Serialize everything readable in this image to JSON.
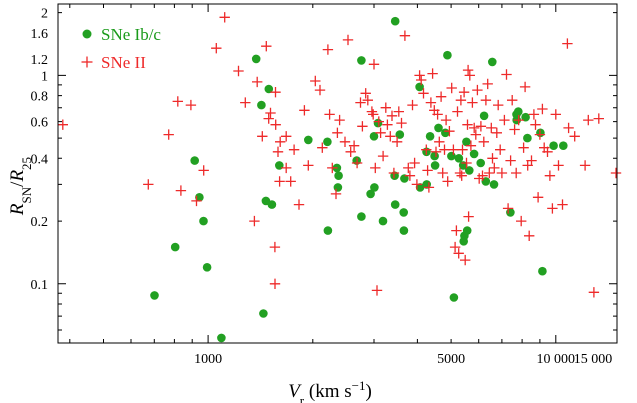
{
  "chart_data": {
    "type": "scatter",
    "xscale": "log",
    "yscale": "log",
    "xlim": [
      370,
      15000
    ],
    "ylim": [
      0.052,
      2.2
    ],
    "xlabel": "V_r (km s^-1)",
    "ylabel": "R_SN/R_25",
    "x_tick_labels": [
      {
        "value": 1000,
        "label": "1000"
      },
      {
        "value": 5000,
        "label": "5000"
      },
      {
        "value": 10000,
        "label": "10 000"
      },
      {
        "value": 15000,
        "label": "15 000"
      }
    ],
    "y_tick_labels": [
      {
        "value": 0.1,
        "label": "0.1"
      },
      {
        "value": 0.2,
        "label": "0.2"
      },
      {
        "value": 0.4,
        "label": "0.4"
      },
      {
        "value": 0.6,
        "label": "0.6"
      },
      {
        "value": 0.8,
        "label": "0.8"
      },
      {
        "value": 1.0,
        "label": "1"
      },
      {
        "value": 1.2,
        "label": "1.2"
      },
      {
        "value": 1.6,
        "label": "1.6"
      },
      {
        "value": 2.0,
        "label": "2"
      }
    ],
    "legend_position": "top-left",
    "series": [
      {
        "name": "SNe Ib/c",
        "marker": "circle",
        "color": "#22a022",
        "points": [
          [
            701,
            0.088
          ],
          [
            804,
            0.15
          ],
          [
            915,
            0.39
          ],
          [
            944,
            0.26
          ],
          [
            970,
            0.2
          ],
          [
            993,
            0.12
          ],
          [
            1092,
            0.055
          ],
          [
            1375,
            1.2
          ],
          [
            1423,
            0.72
          ],
          [
            1442,
            0.072
          ],
          [
            1466,
            0.25
          ],
          [
            1495,
            0.86
          ],
          [
            1526,
            0.24
          ],
          [
            1602,
            0.37
          ],
          [
            1941,
            0.49
          ],
          [
            2211,
            0.18
          ],
          [
            2203,
            0.48
          ],
          [
            2347,
            0.36
          ],
          [
            2373,
            0.33
          ],
          [
            2362,
            0.29
          ],
          [
            2676,
            0.39
          ],
          [
            2760,
            1.18
          ],
          [
            2760,
            0.21
          ],
          [
            2933,
            0.27
          ],
          [
            3009,
            0.29
          ],
          [
            3000,
            0.51
          ],
          [
            3080,
            0.59
          ],
          [
            3185,
            0.2
          ],
          [
            3453,
            0.24
          ],
          [
            3439,
            0.33
          ],
          [
            3453,
            1.82
          ],
          [
            3558,
            0.52
          ],
          [
            3658,
            0.18
          ],
          [
            3653,
            0.22
          ],
          [
            3669,
            0.32
          ],
          [
            4058,
            0.88
          ],
          [
            4071,
            0.29
          ],
          [
            4249,
            0.43
          ],
          [
            4253,
            0.3
          ],
          [
            4350,
            0.51
          ],
          [
            4482,
            0.41
          ],
          [
            4496,
            0.37
          ],
          [
            4599,
            0.56
          ],
          [
            4812,
            0.53
          ],
          [
            4877,
            1.25
          ],
          [
            5008,
            0.41
          ],
          [
            5092,
            0.086
          ],
          [
            5264,
            0.4
          ],
          [
            5418,
            0.37
          ],
          [
            5436,
            0.16
          ],
          [
            5458,
            0.17
          ],
          [
            5533,
            0.48
          ],
          [
            5560,
            0.18
          ],
          [
            5640,
            0.35
          ],
          [
            5823,
            0.42
          ],
          [
            6082,
            0.38
          ],
          [
            6222,
            0.64
          ],
          [
            6292,
            0.31
          ],
          [
            6567,
            1.16
          ],
          [
            6641,
            0.3
          ],
          [
            7406,
            0.22
          ],
          [
            7718,
            0.61
          ],
          [
            7710,
            0.65
          ],
          [
            7800,
            0.67
          ],
          [
            8190,
            0.63
          ],
          [
            8286,
            0.5
          ],
          [
            9031,
            0.53
          ],
          [
            9154,
            0.115
          ],
          [
            9856,
            0.46
          ],
          [
            10511,
            0.46
          ]
        ]
      },
      {
        "name": "SNe II",
        "marker": "plus",
        "color": "#ee2a2a",
        "points": [
          [
            382,
            0.58
          ],
          [
            673,
            0.3
          ],
          [
            770,
            0.52
          ],
          [
            818,
            0.75
          ],
          [
            835,
            0.28
          ],
          [
            892,
            0.72
          ],
          [
            926,
            0.25
          ],
          [
            971,
            0.35
          ],
          [
            1056,
            1.35
          ],
          [
            1116,
            1.9
          ],
          [
            1223,
            1.05
          ],
          [
            1279,
            0.74
          ],
          [
            1359,
            0.2
          ],
          [
            1384,
            0.93
          ],
          [
            1432,
            0.51
          ],
          [
            1470,
            1.38
          ],
          [
            1494,
            0.62
          ],
          [
            1512,
            0.66
          ],
          [
            1556,
            0.15
          ],
          [
            1557,
            0.1
          ],
          [
            1565,
            0.58
          ],
          [
            1562,
            0.83
          ],
          [
            1589,
            0.43
          ],
          [
            1606,
            0.31
          ],
          [
            1612,
            0.48
          ],
          [
            1677,
            0.51
          ],
          [
            1677,
            0.36
          ],
          [
            1728,
            0.31
          ],
          [
            1767,
            0.44
          ],
          [
            1826,
            0.24
          ],
          [
            1892,
            0.68
          ],
          [
            1941,
            0.37
          ],
          [
            2034,
            0.94
          ],
          [
            2098,
            0.85
          ],
          [
            2130,
            0.45
          ],
          [
            2211,
            1.33
          ],
          [
            2236,
            0.65
          ],
          [
            2276,
            0.36
          ],
          [
            2333,
            0.27
          ],
          [
            2355,
            0.53
          ],
          [
            2389,
            0.61
          ],
          [
            2476,
            0.48
          ],
          [
            2526,
            1.48
          ],
          [
            2571,
            0.43
          ],
          [
            2629,
            0.46
          ],
          [
            2682,
            0.38
          ],
          [
            2744,
            0.74
          ],
          [
            2779,
            0.57
          ],
          [
            2840,
            0.82
          ],
          [
            2880,
            0.76
          ],
          [
            2958,
            0.67
          ],
          [
            3000,
            1.13
          ],
          [
            2984,
            0.65
          ],
          [
            3026,
            0.36
          ],
          [
            3060,
            0.093
          ],
          [
            3098,
            0.6
          ],
          [
            3135,
            0.53
          ],
          [
            3187,
            0.41
          ],
          [
            3244,
            0.7
          ],
          [
            3279,
            0.58
          ],
          [
            3343,
            0.51
          ],
          [
            3380,
            0.64
          ],
          [
            3422,
            0.34
          ],
          [
            3495,
            0.48
          ],
          [
            3536,
            0.67
          ],
          [
            3599,
            0.59
          ],
          [
            3681,
            1.55
          ],
          [
            3764,
            0.36
          ],
          [
            3806,
            0.33
          ],
          [
            3872,
            0.72
          ],
          [
            3925,
            0.38
          ],
          [
            3985,
            0.3
          ],
          [
            4058,
            1.0
          ],
          [
            4101,
            0.95
          ],
          [
            4165,
            0.82
          ],
          [
            4243,
            0.44
          ],
          [
            4279,
            0.35
          ],
          [
            4316,
            0.29
          ],
          [
            4374,
            0.74
          ],
          [
            4424,
            1.02
          ],
          [
            4472,
            0.68
          ],
          [
            4524,
            0.43
          ],
          [
            4571,
            0.65
          ],
          [
            4624,
            0.48
          ],
          [
            4678,
            0.79
          ],
          [
            4730,
            0.34
          ],
          [
            4786,
            0.44
          ],
          [
            4836,
            0.61
          ],
          [
            4888,
            0.31
          ],
          [
            4943,
            0.54
          ],
          [
            5018,
            0.87
          ],
          [
            5076,
            0.44
          ],
          [
            5135,
            0.15
          ],
          [
            5178,
            0.18
          ],
          [
            5214,
            0.67
          ],
          [
            5256,
            0.14
          ],
          [
            5302,
            0.34
          ],
          [
            5335,
            0.76
          ],
          [
            5364,
            0.33
          ],
          [
            5393,
            0.44
          ],
          [
            5447,
            0.83
          ],
          [
            5490,
            0.13
          ],
          [
            5535,
            0.38
          ],
          [
            5574,
            0.58
          ],
          [
            5596,
            1.06
          ],
          [
            5612,
            0.21
          ],
          [
            5660,
            1.0
          ],
          [
            5700,
            0.46
          ],
          [
            5755,
            0.74
          ],
          [
            5824,
            0.56
          ],
          [
            5888,
            0.52
          ],
          [
            5951,
            0.85
          ],
          [
            6023,
            0.32
          ],
          [
            6091,
            0.57
          ],
          [
            6155,
            0.33
          ],
          [
            6207,
            0.48
          ],
          [
            6294,
            0.76
          ],
          [
            6371,
            0.91
          ],
          [
            6440,
            0.34
          ],
          [
            6525,
            0.56
          ],
          [
            6577,
            0.4
          ],
          [
            6654,
            0.36
          ],
          [
            6765,
            0.53
          ],
          [
            6828,
            0.72
          ],
          [
            6919,
            0.44
          ],
          [
            6997,
            0.34
          ],
          [
            7117,
            0.61
          ],
          [
            7216,
            1.01
          ],
          [
            7290,
            0.23
          ],
          [
            7413,
            0.39
          ],
          [
            7492,
            0.76
          ],
          [
            7613,
            0.55
          ],
          [
            7693,
            0.34
          ],
          [
            7823,
            0.61
          ],
          [
            7954,
            0.2
          ],
          [
            8082,
            0.45
          ],
          [
            8160,
            0.88
          ],
          [
            8301,
            0.37
          ],
          [
            8384,
            0.17
          ],
          [
            8517,
            0.39
          ],
          [
            8649,
            0.65
          ],
          [
            8742,
            0.58
          ],
          [
            8897,
            0.26
          ],
          [
            9004,
            0.52
          ],
          [
            9152,
            0.69
          ],
          [
            9259,
            0.45
          ],
          [
            9466,
            0.43
          ],
          [
            9620,
            0.33
          ],
          [
            9780,
            0.23
          ],
          [
            10003,
            0.65
          ],
          [
            10180,
            0.37
          ],
          [
            10456,
            0.24
          ],
          [
            10802,
            1.42
          ],
          [
            10889,
            0.56
          ],
          [
            11337,
            0.51
          ],
          [
            12142,
            0.37
          ],
          [
            12403,
            0.61
          ],
          [
            12872,
            0.091
          ],
          [
            13296,
            0.62
          ],
          [
            14904,
            0.34
          ]
        ]
      }
    ]
  }
}
